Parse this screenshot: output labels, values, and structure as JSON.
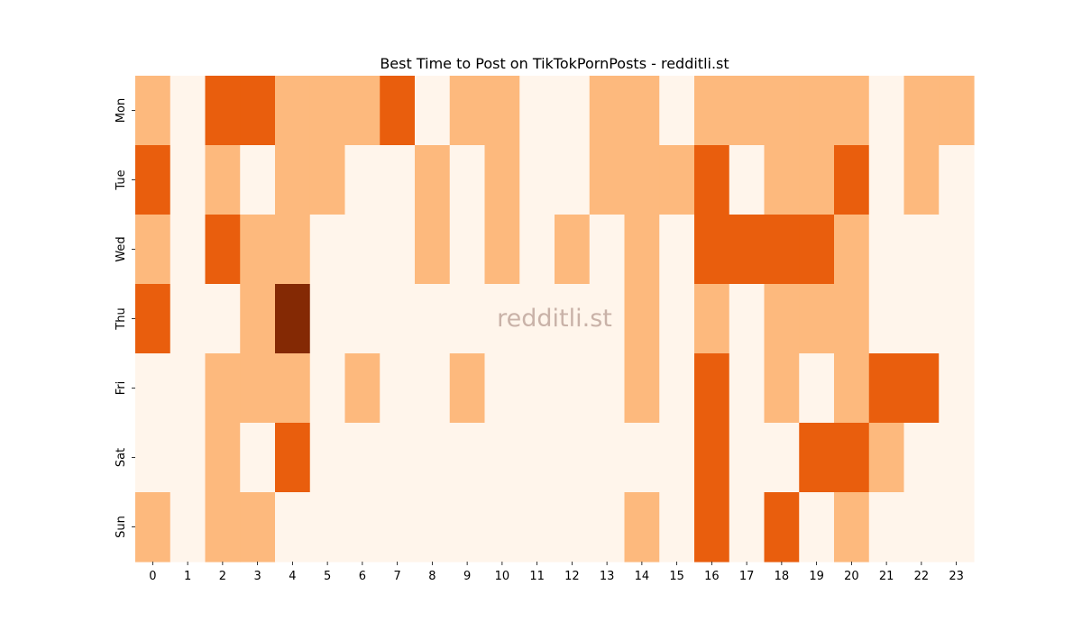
{
  "chart_data": {
    "type": "heatmap",
    "title": "Best Time to Post on TikTokPornPosts - redditli.st",
    "watermark": "redditli.st",
    "x": [
      "0",
      "1",
      "2",
      "3",
      "4",
      "5",
      "6",
      "7",
      "8",
      "9",
      "10",
      "11",
      "12",
      "13",
      "14",
      "15",
      "16",
      "17",
      "18",
      "19",
      "20",
      "21",
      "22",
      "23"
    ],
    "y": [
      "Mon",
      "Tue",
      "Wed",
      "Thu",
      "Fri",
      "Sat",
      "Sun"
    ],
    "values": [
      [
        1,
        0,
        2,
        2,
        1,
        1,
        1,
        2,
        0,
        1,
        1,
        0,
        0,
        1,
        1,
        0,
        1,
        1,
        1,
        1,
        1,
        0,
        1,
        1
      ],
      [
        2,
        0,
        1,
        0,
        1,
        1,
        0,
        0,
        1,
        0,
        1,
        0,
        0,
        1,
        1,
        1,
        2,
        0,
        1,
        1,
        2,
        0,
        1,
        0
      ],
      [
        1,
        0,
        2,
        1,
        1,
        0,
        0,
        0,
        1,
        0,
        1,
        0,
        1,
        0,
        1,
        0,
        2,
        2,
        2,
        2,
        1,
        0,
        0,
        0
      ],
      [
        2,
        0,
        0,
        1,
        3,
        0,
        0,
        0,
        0,
        0,
        0,
        0,
        0,
        0,
        1,
        0,
        1,
        0,
        1,
        1,
        1,
        0,
        0,
        0
      ],
      [
        0,
        0,
        1,
        1,
        1,
        0,
        1,
        0,
        0,
        1,
        0,
        0,
        0,
        0,
        1,
        0,
        2,
        0,
        1,
        0,
        1,
        2,
        2,
        0
      ],
      [
        0,
        0,
        1,
        0,
        2,
        0,
        0,
        0,
        0,
        0,
        0,
        0,
        0,
        0,
        0,
        0,
        2,
        0,
        0,
        2,
        2,
        1,
        0,
        0
      ],
      [
        1,
        0,
        1,
        1,
        0,
        0,
        0,
        0,
        0,
        0,
        0,
        0,
        0,
        0,
        1,
        0,
        2,
        0,
        2,
        0,
        1,
        0,
        0,
        0
      ]
    ],
    "color_scale": [
      "#fff5eb",
      "#fdb97d",
      "#e95e0d",
      "#842904"
    ],
    "colorbar": false,
    "grid": false
  }
}
